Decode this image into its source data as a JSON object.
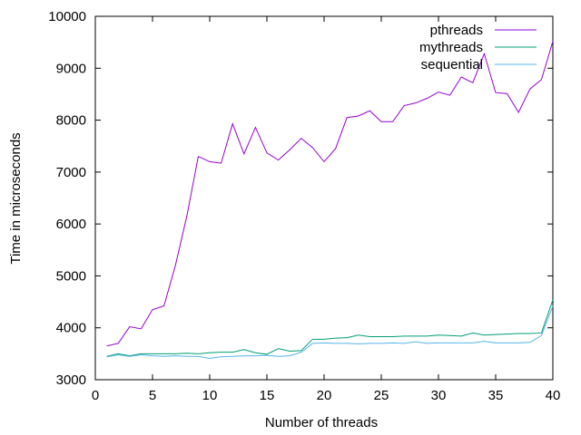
{
  "chart_data": {
    "type": "line",
    "title": "",
    "xlabel": "Number of threads",
    "ylabel": "Time in microseconds",
    "xlim": [
      0,
      40
    ],
    "ylim": [
      3000,
      10000
    ],
    "xticks": [
      0,
      5,
      10,
      15,
      20,
      25,
      30,
      35,
      40
    ],
    "yticks": [
      3000,
      4000,
      5000,
      6000,
      7000,
      8000,
      9000,
      10000
    ],
    "grid": false,
    "legend_position": "top-right",
    "x": [
      1,
      2,
      3,
      4,
      5,
      6,
      7,
      8,
      9,
      10,
      11,
      12,
      13,
      14,
      15,
      16,
      17,
      18,
      19,
      20,
      21,
      22,
      23,
      24,
      25,
      26,
      27,
      28,
      29,
      30,
      31,
      32,
      33,
      34,
      35,
      36,
      37,
      38,
      39,
      40
    ],
    "series": [
      {
        "name": "pthreads",
        "color": "#9400d3",
        "values": [
          3650,
          3700,
          4020,
          3980,
          4350,
          4420,
          5200,
          6150,
          7300,
          7200,
          7170,
          7930,
          7350,
          7860,
          7370,
          7230,
          7430,
          7650,
          7470,
          7200,
          7450,
          8050,
          8080,
          8180,
          7970,
          7970,
          8280,
          8330,
          8420,
          8540,
          8480,
          8830,
          8720,
          9280,
          8530,
          8510,
          8150,
          8600,
          8780,
          9520
        ]
      },
      {
        "name": "mythreads",
        "color": "#009e73",
        "values": [
          3450,
          3500,
          3460,
          3500,
          3500,
          3500,
          3500,
          3510,
          3500,
          3520,
          3530,
          3530,
          3580,
          3520,
          3490,
          3600,
          3550,
          3560,
          3780,
          3780,
          3800,
          3810,
          3860,
          3830,
          3830,
          3830,
          3840,
          3840,
          3840,
          3860,
          3850,
          3840,
          3900,
          3860,
          3870,
          3880,
          3890,
          3890,
          3900,
          4540
        ]
      },
      {
        "name": "sequential",
        "color": "#56b4e9",
        "values": [
          3440,
          3480,
          3450,
          3480,
          3460,
          3450,
          3460,
          3450,
          3450,
          3410,
          3440,
          3450,
          3460,
          3460,
          3470,
          3450,
          3460,
          3530,
          3700,
          3710,
          3700,
          3700,
          3690,
          3700,
          3700,
          3710,
          3700,
          3730,
          3700,
          3710,
          3710,
          3710,
          3710,
          3740,
          3710,
          3710,
          3710,
          3720,
          3850,
          4420
        ]
      }
    ]
  }
}
